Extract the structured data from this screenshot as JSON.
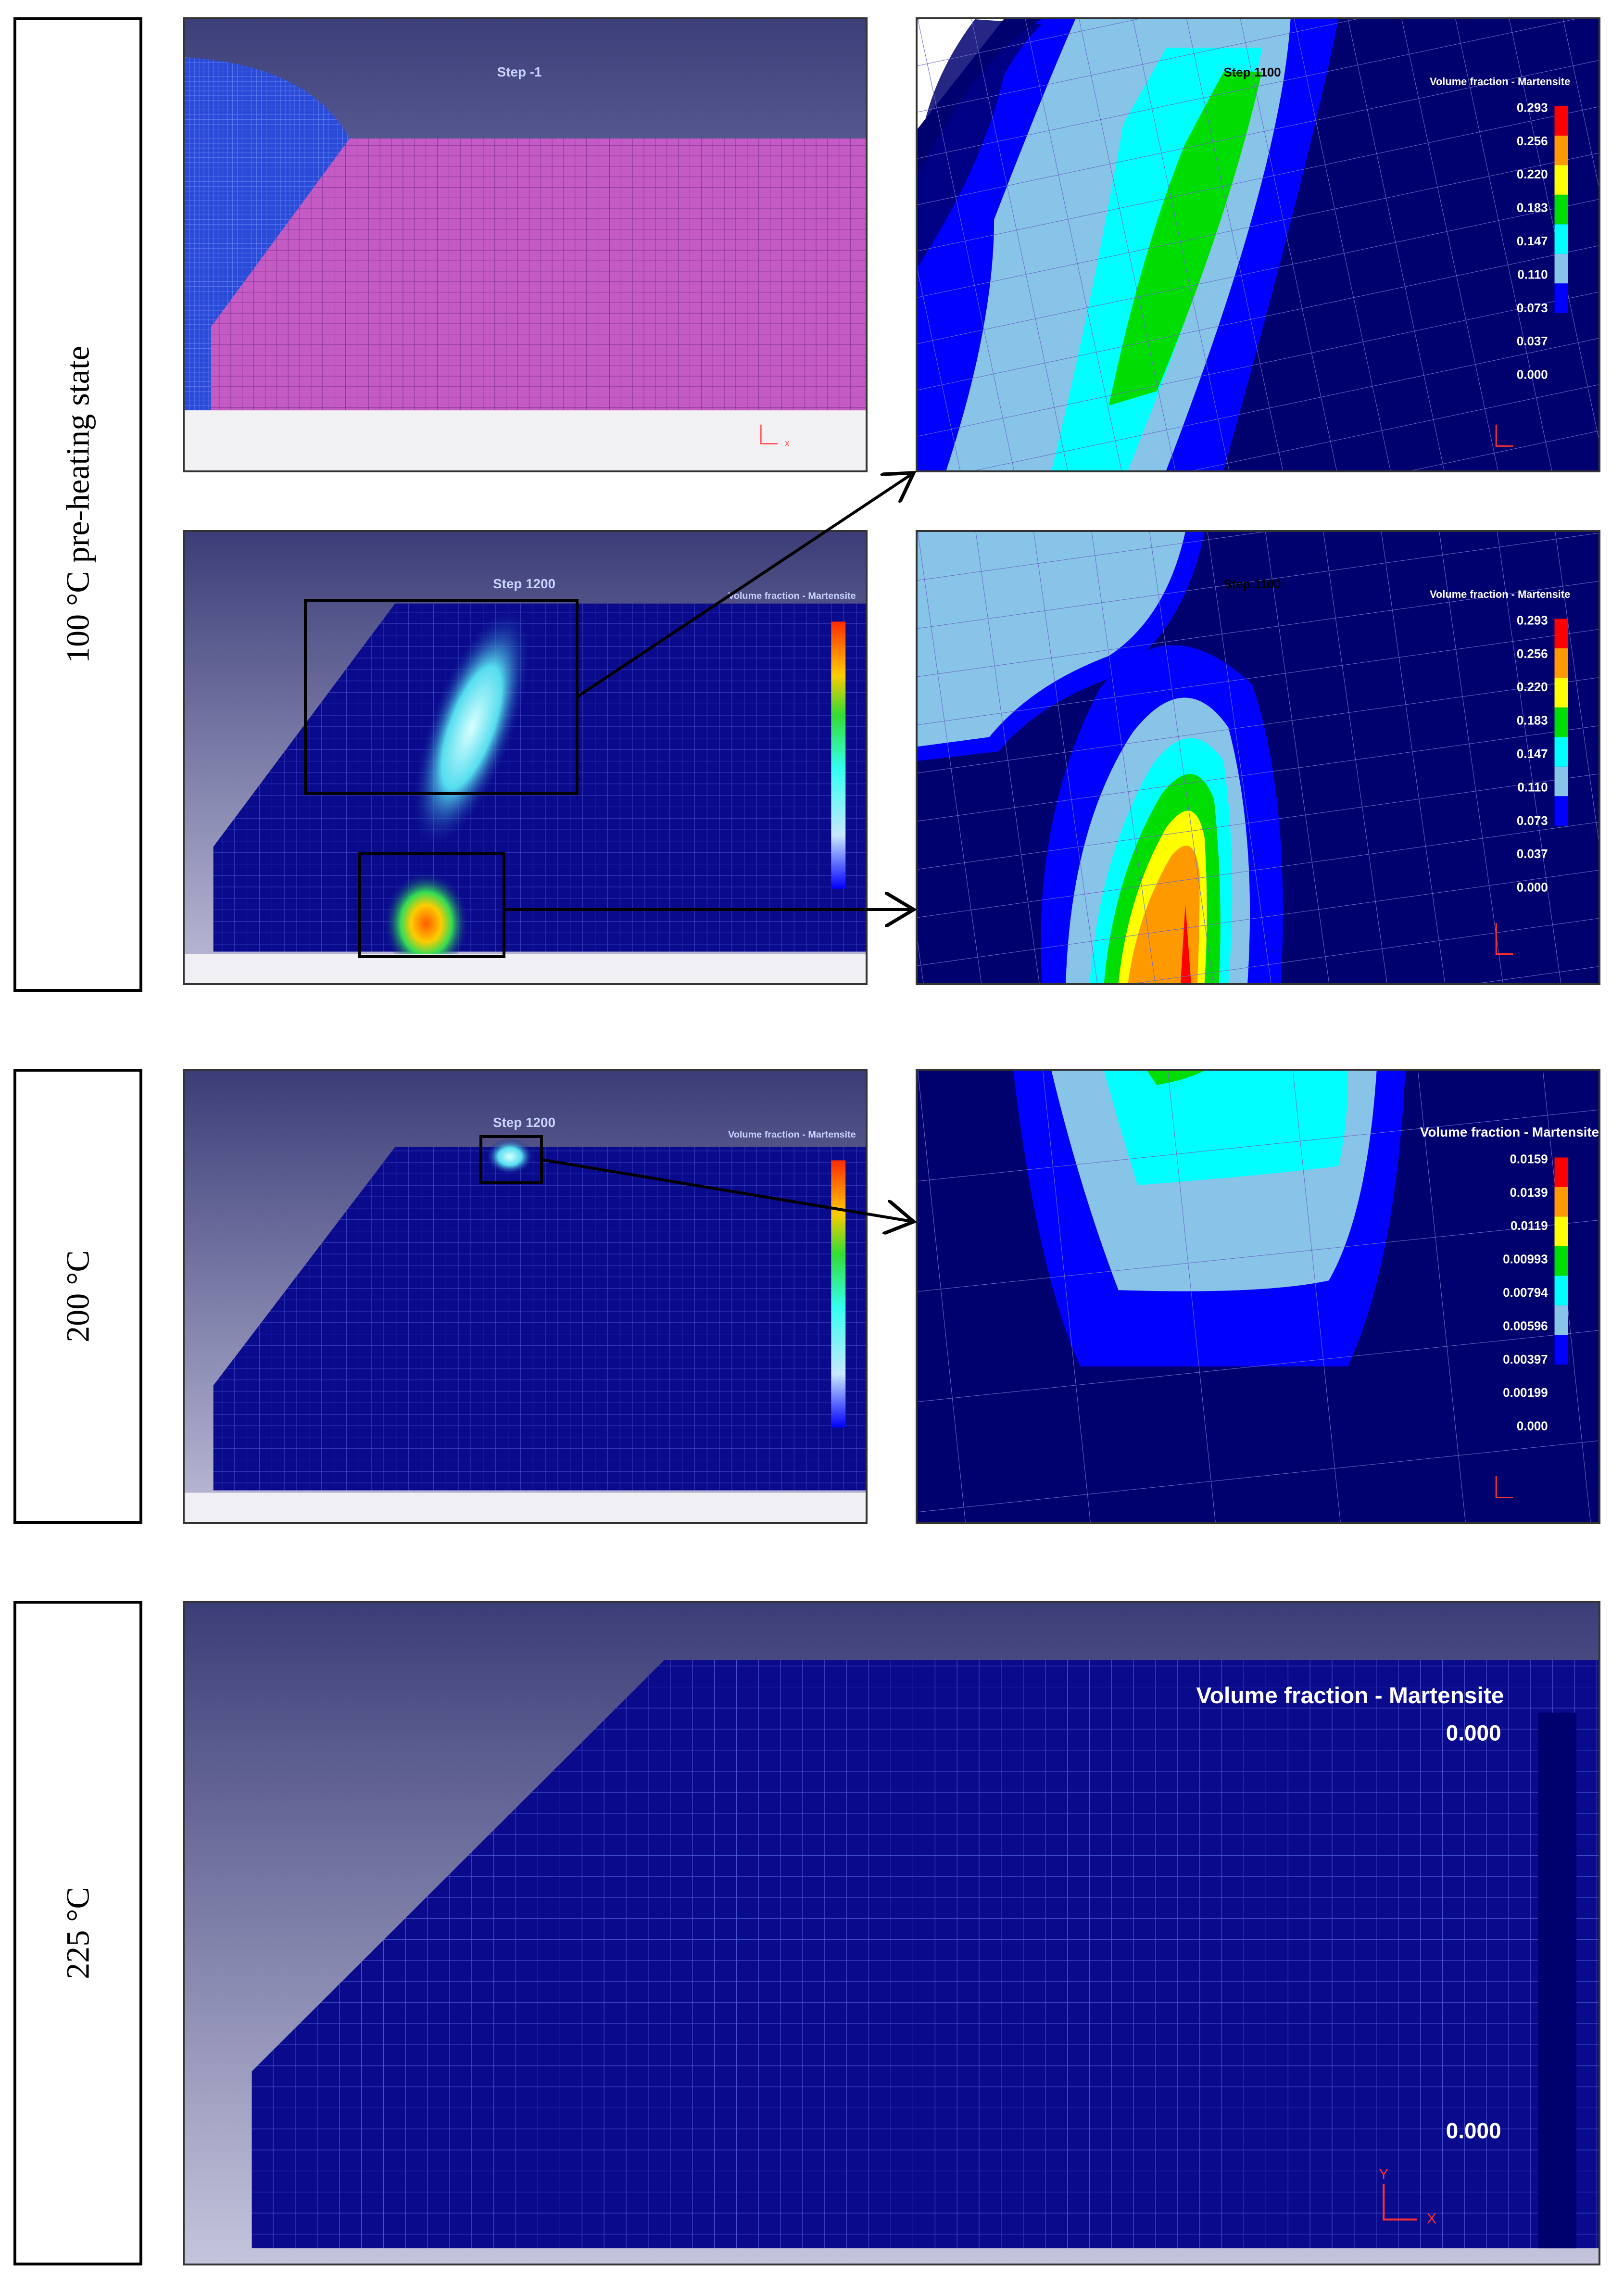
{
  "rows": [
    {
      "label": "100 °C pre-heating state"
    },
    {
      "label": "200 °C"
    },
    {
      "label": "225 °C"
    }
  ],
  "panels": {
    "mesh_initial": {
      "step": "Step  -1"
    },
    "overview_100": {
      "step": "Step 1200",
      "legend_title": "Volume fraction - Martensite"
    },
    "zoom_upper_100": {
      "step": "Step 1100",
      "legend_title": "Volume fraction - Martensite",
      "legend_values": [
        "0.293",
        "0.256",
        "0.220",
        "0.183",
        "0.147",
        "0.110",
        "0.073",
        "0.037",
        "0.000"
      ]
    },
    "zoom_lower_100": {
      "step": "Step 1100",
      "legend_title": "Volume fraction - Martensite",
      "legend_values": [
        "0.293",
        "0.256",
        "0.220",
        "0.183",
        "0.147",
        "0.110",
        "0.073",
        "0.037",
        "0.000"
      ]
    },
    "overview_200": {
      "step": "Step 1200",
      "legend_title": "Volume fraction - Martensite"
    },
    "zoom_200": {
      "legend_title": "Volume fraction - Martensite",
      "legend_values": [
        "0.0159",
        "0.0139",
        "0.0119",
        "0.00993",
        "0.00794",
        "0.00596",
        "0.00397",
        "0.00199",
        "0.000"
      ]
    },
    "wide_225": {
      "legend_title": "Volume fraction - Martensite",
      "legend_max": "0.000",
      "legend_min": "0.000"
    }
  },
  "axes": {
    "x": "x",
    "y": "Y",
    "x2": "X"
  },
  "colors": {
    "deep_blue": "#00006e",
    "blue": "#0000ff",
    "light_blue": "#87c4e8",
    "cyan": "#00ffff",
    "green": "#00dd00",
    "yellow": "#ffff00",
    "orange": "#ff9900",
    "red": "#ff0000",
    "magenta": "#c060c0"
  }
}
